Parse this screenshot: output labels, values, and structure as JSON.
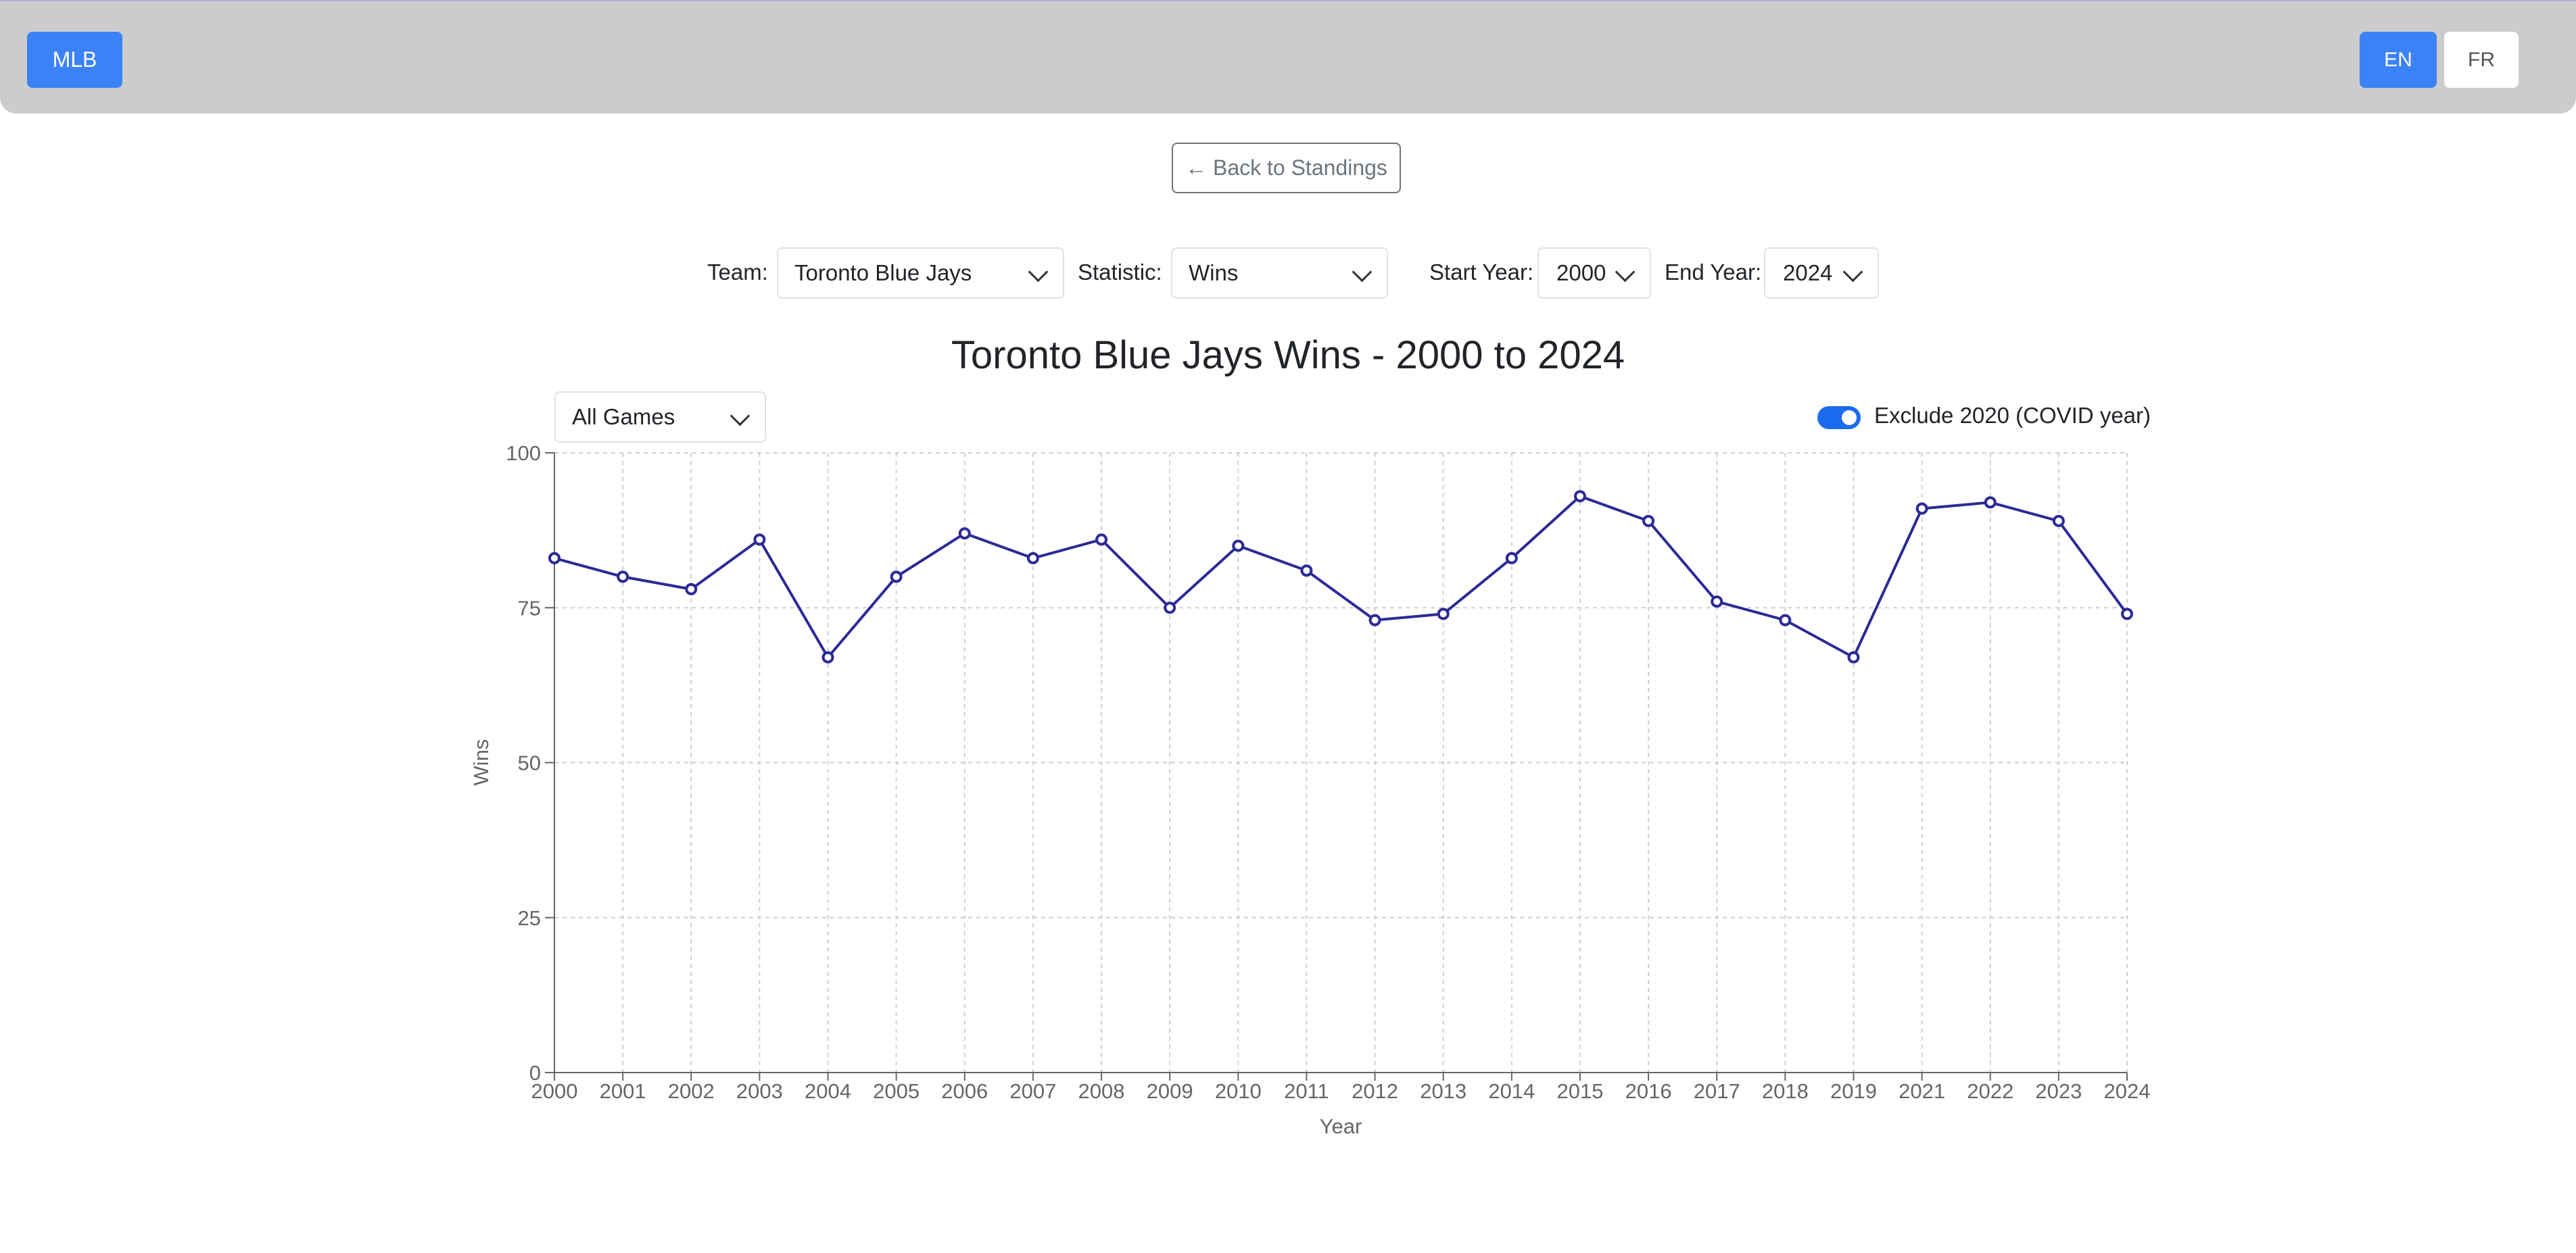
{
  "nav": {
    "brand": "MLB",
    "lang_en": "EN",
    "lang_fr": "FR"
  },
  "back_label": "← Back to Standings",
  "filters": {
    "team_label": "Team:",
    "team_value": "Toronto Blue Jays",
    "stat_label": "Statistic:",
    "stat_value": "Wins",
    "start_label": "Start Year:",
    "start_value": "2000",
    "end_label": "End Year:",
    "end_value": "2024"
  },
  "game_filter": "All Games",
  "exclude_covid": {
    "label": "Exclude 2020 (COVID year)",
    "checked": true
  },
  "chart_data": {
    "type": "line",
    "title": "Toronto Blue Jays Wins - 2000 to 2024",
    "xlabel": "Year",
    "ylabel": "Wins",
    "ylim": [
      0,
      100
    ],
    "yticks": [
      0,
      25,
      50,
      75,
      100
    ],
    "grid": true,
    "x": [
      "2000",
      "2001",
      "2002",
      "2003",
      "2004",
      "2005",
      "2006",
      "2007",
      "2008",
      "2009",
      "2010",
      "2011",
      "2012",
      "2013",
      "2014",
      "2015",
      "2016",
      "2017",
      "2018",
      "2019",
      "2021",
      "2022",
      "2023",
      "2024"
    ],
    "series": [
      {
        "color": "#2c2a96",
        "values": [
          83,
          80,
          78,
          86,
          67,
          80,
          87,
          83,
          86,
          75,
          85,
          81,
          73,
          74,
          83,
          93,
          89,
          76,
          73,
          67,
          91,
          92,
          89,
          74
        ]
      }
    ]
  }
}
